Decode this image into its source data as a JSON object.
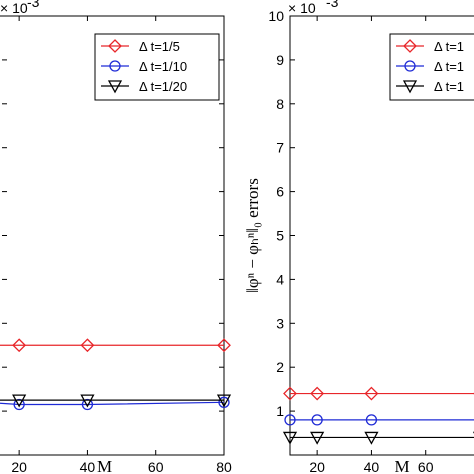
{
  "chart_data": [
    {
      "type": "line",
      "title": "",
      "xlabel": "M",
      "ylabel": "",
      "y_exponent_label": "× 10",
      "y_exponent_power": "-3",
      "xlim": [
        10,
        80
      ],
      "ylim": [
        0,
        10
      ],
      "x_ticks": [
        "20",
        "40",
        "60",
        "80"
      ],
      "y_ticks": [],
      "legend_position": "top-right",
      "series": [
        {
          "name": "Δ t=1/5",
          "color": "#e8262a",
          "marker": "diamond",
          "x": [
            10,
            20,
            40,
            80
          ],
          "y": [
            2.5,
            2.5,
            2.5,
            2.5
          ]
        },
        {
          "name": "Δ t=1/10",
          "color": "#1f2bd6",
          "marker": "circle",
          "x": [
            10,
            20,
            40,
            80
          ],
          "y": [
            1.2,
            1.15,
            1.15,
            1.2
          ]
        },
        {
          "name": "Δ t=1/20",
          "color": "#000000",
          "marker": "triangle",
          "x": [
            10,
            20,
            40,
            80
          ],
          "y": [
            1.25,
            1.25,
            1.25,
            1.25
          ]
        }
      ]
    },
    {
      "type": "line",
      "title": "",
      "xlabel": "M",
      "ylabel": "‖φⁿ − φₕⁿ‖₀ errors",
      "y_exponent_label": "× 10",
      "y_exponent_power": "-3",
      "xlim": [
        10,
        80
      ],
      "ylim": [
        0,
        10
      ],
      "x_ticks": [
        "20",
        "40",
        "60"
      ],
      "y_ticks": [
        "1",
        "2",
        "3",
        "4",
        "5",
        "6",
        "7",
        "8",
        "9",
        "10"
      ],
      "legend_position": "top-right",
      "series": [
        {
          "name": "Δ t=1",
          "color": "#e8262a",
          "marker": "diamond",
          "x": [
            10,
            20,
            40,
            80
          ],
          "y": [
            1.4,
            1.4,
            1.4,
            1.4
          ]
        },
        {
          "name": "Δ t=1",
          "color": "#1f2bd6",
          "marker": "circle",
          "x": [
            10,
            20,
            40,
            80
          ],
          "y": [
            0.8,
            0.8,
            0.8,
            0.8
          ]
        },
        {
          "name": "Δ t=1",
          "color": "#000000",
          "marker": "triangle",
          "x": [
            10,
            20,
            40,
            80
          ],
          "y": [
            0.4,
            0.4,
            0.4,
            0.4
          ]
        }
      ]
    }
  ]
}
